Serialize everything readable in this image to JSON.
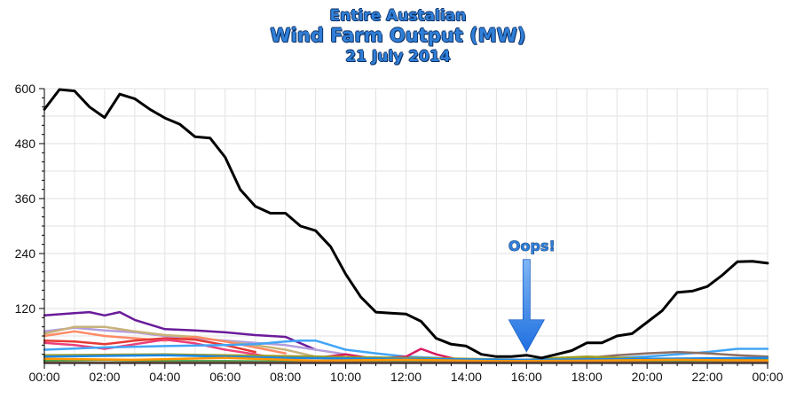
{
  "title": {
    "line1": "Entire Austalian",
    "line2": "Wind Farm Output (MW)",
    "line3": "21 July 2014"
  },
  "annotation": {
    "text": "Oops!",
    "x": 16.0,
    "y": 14
  },
  "chart_data": {
    "type": "line",
    "title": "Entire Austalian Wind Farm Output (MW)",
    "subtitle": "21 July 2014",
    "xlabel": "",
    "ylabel": "",
    "xlim": [
      0,
      24
    ],
    "ylim": [
      0,
      600
    ],
    "grid": true,
    "legend": "none",
    "x_ticks": [
      "00:00",
      "02:00",
      "04:00",
      "06:00",
      "08:00",
      "10:00",
      "12:00",
      "14:00",
      "16:00",
      "18:00",
      "20:00",
      "22:00",
      "00:00"
    ],
    "y_ticks": [
      120,
      240,
      360,
      480,
      600
    ],
    "series": [
      {
        "color": "#000000",
        "x": [
          0,
          0.5,
          1,
          1.5,
          2,
          2.5,
          3,
          3.5,
          4,
          4.5,
          5,
          5.5,
          6,
          6.5,
          7,
          7.5,
          8,
          8.5,
          9,
          9.5,
          10,
          10.5,
          11,
          11.5,
          12,
          12.5,
          13,
          13.5,
          14,
          14.5,
          15,
          15.5,
          16,
          16.5,
          17,
          17.5,
          18,
          18.5,
          19,
          19.5,
          20,
          20.5,
          21,
          21.5,
          22,
          22.5,
          23,
          23.5,
          24
        ],
        "values": [
          555,
          598,
          595,
          560,
          537,
          588,
          578,
          555,
          536,
          522,
          495,
          492,
          450,
          380,
          343,
          328,
          328,
          300,
          290,
          255,
          195,
          145,
          112,
          110,
          108,
          92,
          55,
          42,
          38,
          20,
          15,
          15,
          18,
          12,
          20,
          28,
          45,
          45,
          60,
          65,
          90,
          115,
          155,
          158,
          168,
          193,
          222,
          223,
          219
        ]
      },
      {
        "color": "#6a1b9a",
        "x": [
          0,
          1,
          1.5,
          2,
          2.5,
          3,
          4,
          5,
          6,
          7,
          8,
          9
        ],
        "values": [
          105,
          110,
          112,
          105,
          112,
          95,
          75,
          72,
          68,
          62,
          58,
          30
        ]
      },
      {
        "color": "#b39ddb",
        "x": [
          0,
          1,
          2,
          3,
          4,
          5,
          6,
          7,
          8,
          9,
          10
        ],
        "values": [
          70,
          78,
          72,
          68,
          60,
          55,
          50,
          45,
          40,
          30,
          20
        ]
      },
      {
        "color": "#c8b27a",
        "x": [
          0,
          1,
          2,
          3,
          4,
          5,
          6,
          7,
          8,
          9
        ],
        "values": [
          65,
          80,
          80,
          70,
          62,
          58,
          48,
          40,
          30,
          15
        ]
      },
      {
        "color": "#ff8a65",
        "x": [
          0,
          1,
          2,
          3,
          4,
          5,
          6,
          7,
          8
        ],
        "values": [
          60,
          70,
          60,
          55,
          50,
          58,
          48,
          35,
          22
        ]
      },
      {
        "color": "#e53935",
        "x": [
          0,
          1,
          2,
          3,
          4,
          5,
          6,
          7
        ],
        "values": [
          50,
          48,
          42,
          50,
          55,
          52,
          40,
          25
        ]
      },
      {
        "color": "#ec407a",
        "x": [
          0,
          1,
          2,
          3,
          4,
          5,
          6,
          7,
          8
        ],
        "values": [
          45,
          40,
          32,
          42,
          52,
          44,
          30,
          20,
          8
        ]
      },
      {
        "color": "#42a5f5",
        "x": [
          0,
          2,
          4,
          6,
          7,
          8,
          8.5,
          9,
          10,
          11,
          12,
          13,
          14,
          15,
          16,
          17,
          18,
          19,
          20,
          21,
          22,
          23,
          24
        ],
        "values": [
          30,
          35,
          38,
          40,
          42,
          48,
          50,
          50,
          30,
          22,
          15,
          12,
          8,
          5,
          5,
          6,
          8,
          12,
          15,
          20,
          25,
          32,
          32
        ]
      },
      {
        "color": "#d81b60",
        "x": [
          8,
          9,
          10,
          11,
          12,
          12.5,
          13,
          13.5,
          14
        ],
        "values": [
          15,
          12,
          20,
          10,
          15,
          32,
          20,
          12,
          5
        ]
      },
      {
        "color": "#8d6e63",
        "x": [
          16,
          17,
          18,
          19,
          20,
          21,
          22,
          23,
          24
        ],
        "values": [
          5,
          8,
          12,
          18,
          22,
          25,
          22,
          18,
          15
        ]
      },
      {
        "color": "#9e9d24",
        "x": [
          0,
          4,
          8,
          12,
          14,
          16,
          17,
          18,
          20,
          24
        ],
        "values": [
          18,
          20,
          16,
          12,
          10,
          8,
          12,
          15,
          10,
          8
        ]
      },
      {
        "color": "#1e88e5",
        "x": [
          0,
          4,
          8,
          12,
          16,
          20,
          24
        ],
        "values": [
          15,
          18,
          12,
          10,
          8,
          10,
          12
        ]
      },
      {
        "color": "#43a047",
        "x": [
          0,
          2,
          4,
          6,
          8,
          10,
          12,
          14,
          16,
          18,
          20,
          22,
          24
        ],
        "values": [
          6,
          8,
          5,
          5,
          4,
          3,
          3,
          3,
          2,
          3,
          4,
          5,
          4
        ]
      },
      {
        "color": "#ff9800",
        "x": [
          0,
          3,
          6,
          9,
          12,
          15,
          18,
          21,
          24
        ],
        "values": [
          10,
          8,
          12,
          6,
          8,
          5,
          6,
          8,
          6
        ]
      },
      {
        "color": "#795548",
        "x": [
          0,
          24
        ],
        "values": [
          2,
          2
        ]
      }
    ]
  }
}
